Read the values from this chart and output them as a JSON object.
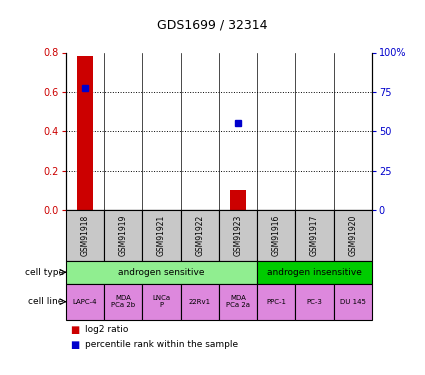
{
  "title": "GDS1699 / 32314",
  "samples": [
    "GSM91918",
    "GSM91919",
    "GSM91921",
    "GSM91922",
    "GSM91923",
    "GSM91916",
    "GSM91917",
    "GSM91920"
  ],
  "log2_ratio": [
    0.78,
    0.0,
    0.0,
    0.0,
    0.1,
    0.0,
    0.0,
    0.0
  ],
  "percentile_rank": [
    0.62,
    null,
    null,
    null,
    0.44,
    null,
    null,
    null
  ],
  "ylim_left": [
    0,
    0.8
  ],
  "ylim_right": [
    0,
    100
  ],
  "yticks_left": [
    0,
    0.2,
    0.4,
    0.6,
    0.8
  ],
  "yticks_right": [
    0,
    25,
    50,
    75,
    100
  ],
  "ytick_labels_right": [
    "0",
    "25",
    "50",
    "75",
    "100%"
  ],
  "cell_type_groups": [
    {
      "label": "androgen sensitive",
      "start": 0,
      "end": 5,
      "color": "#90EE90"
    },
    {
      "label": "androgen insensitive",
      "start": 5,
      "end": 8,
      "color": "#00CC00"
    }
  ],
  "cell_lines": [
    "LAPC-4",
    "MDA\nPCa 2b",
    "LNCa\nP",
    "22Rv1",
    "MDA\nPCa 2a",
    "PPC-1",
    "PC-3",
    "DU 145"
  ],
  "cell_line_color": "#DD88DD",
  "sample_bg_color": "#C8C8C8",
  "bar_color": "#CC0000",
  "point_color": "#0000CC",
  "left_tick_color": "#CC0000",
  "right_tick_color": "#0000CC",
  "legend_red_label": "log2 ratio",
  "legend_blue_label": "percentile rank within the sample",
  "cell_type_label": "cell type",
  "cell_line_label": "cell line",
  "dotted_lines": [
    0.2,
    0.4,
    0.6
  ],
  "bar_width": 0.4
}
